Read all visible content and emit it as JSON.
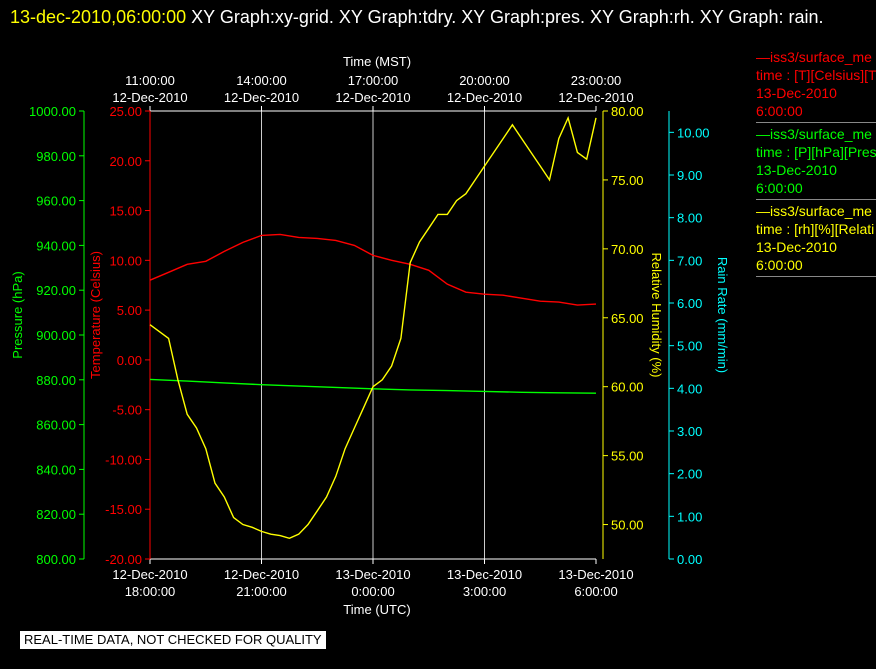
{
  "title": {
    "timestamp": "13-dec-2010,06:00:00",
    "text": "XY Graph:xy-grid.  XY Graph:tdry.  XY Graph:pres.  XY Graph:rh.  XY Graph: rain."
  },
  "legend": [
    {
      "name": "—iss3/surface_me",
      "label": "time : [T][Celsius][T",
      "date": "13-Dec-2010",
      "time": "6:00:00",
      "color": "#ff0000"
    },
    {
      "name": "—iss3/surface_me",
      "label": "time : [P][hPa][Pres",
      "date": "13-Dec-2010",
      "time": "6:00:00",
      "color": "#00ff00"
    },
    {
      "name": "—iss3/surface_me",
      "label": "time : [rh][%][Relati",
      "date": "13-Dec-2010",
      "time": "6:00:00",
      "color": "#ffff00"
    }
  ],
  "footer": "REAL-TIME DATA, NOT CHECKED FOR QUALITY",
  "chart_data": {
    "type": "line",
    "top_axis_label": "Time (MST)",
    "bottom_axis_label": "Time (UTC)",
    "xlim": [
      "12-Dec-2010 18:00:00",
      "13-Dec-2010 06:00:00"
    ],
    "x_ticks_utc": [
      {
        "date": "12-Dec-2010",
        "time": "18:00:00"
      },
      {
        "date": "12-Dec-2010",
        "time": "21:00:00"
      },
      {
        "date": "13-Dec-2010",
        "time": "0:00:00"
      },
      {
        "date": "13-Dec-2010",
        "time": "3:00:00"
      },
      {
        "date": "13-Dec-2010",
        "time": "6:00:00"
      }
    ],
    "x_ticks_mst": [
      {
        "time": "11:00:00",
        "date": "12-Dec-2010"
      },
      {
        "time": "14:00:00",
        "date": "12-Dec-2010"
      },
      {
        "time": "17:00:00",
        "date": "12-Dec-2010"
      },
      {
        "time": "20:00:00",
        "date": "12-Dec-2010"
      },
      {
        "time": "23:00:00",
        "date": "12-Dec-2010"
      }
    ],
    "grid": "vertical",
    "axes": {
      "pressure": {
        "label": "Pressure (hPa)",
        "min": 800,
        "max": 1000,
        "color": "#00ff00",
        "ticks": [
          "800.00",
          "820.00",
          "840.00",
          "860.00",
          "880.00",
          "900.00",
          "920.00",
          "940.00",
          "960.00",
          "980.00",
          "1000.00"
        ]
      },
      "temperature": {
        "label": "Temperature (Celsius)",
        "min": -20,
        "max": 25,
        "color": "#ff0000",
        "ticks": [
          "-20.00",
          "-15.00",
          "-10.00",
          "-5.00",
          "0.00",
          "5.00",
          "10.00",
          "15.00",
          "20.00",
          "25.00"
        ]
      },
      "humidity": {
        "label": "Relative Humidity (%)",
        "min": 47.5,
        "max": 80,
        "color": "#ffff00",
        "ticks": [
          "50.00",
          "55.00",
          "60.00",
          "65.00",
          "70.00",
          "75.00",
          "80.00"
        ]
      },
      "rain": {
        "label": "Rain Rate (mm/min)",
        "min": 0,
        "max": 10.5,
        "color": "#00ffff",
        "ticks": [
          "0.00",
          "1.00",
          "2.00",
          "3.00",
          "4.00",
          "5.00",
          "6.00",
          "7.00",
          "8.00",
          "9.00",
          "10.00"
        ]
      }
    },
    "series": [
      {
        "name": "time : [T][Celsius][T",
        "axis": "temperature",
        "color": "#ff0000",
        "x_hours": [
          0,
          0.5,
          1,
          1.5,
          2,
          2.5,
          3,
          3.5,
          4,
          4.5,
          5,
          5.5,
          6,
          6.5,
          7,
          7.5,
          8,
          8.5,
          9,
          9.5,
          10,
          10.5,
          11,
          11.5,
          12
        ],
        "values": [
          8.0,
          8.8,
          9.6,
          9.9,
          10.9,
          11.8,
          12.5,
          12.6,
          12.3,
          12.2,
          12.0,
          11.5,
          10.5,
          10.0,
          9.6,
          9.0,
          7.6,
          6.8,
          6.6,
          6.5,
          6.2,
          5.9,
          5.8,
          5.5,
          5.6
        ]
      },
      {
        "name": "time : [P][hPa][Pres",
        "axis": "pressure",
        "color": "#00ff00",
        "x_hours": [
          0,
          1,
          2,
          3,
          4,
          5,
          6,
          7,
          8,
          9,
          10,
          11,
          12
        ],
        "values": [
          880.2,
          879.4,
          878.6,
          877.8,
          877.2,
          876.6,
          876.0,
          875.5,
          875.2,
          874.8,
          874.4,
          874.2,
          874.0
        ]
      },
      {
        "name": "time : [rh][%][Relati",
        "axis": "humidity",
        "color": "#ffff00",
        "x_hours": [
          0,
          0.25,
          0.5,
          0.75,
          1,
          1.25,
          1.5,
          1.75,
          2,
          2.25,
          2.5,
          2.75,
          3,
          3.25,
          3.5,
          3.75,
          4,
          4.25,
          4.5,
          4.75,
          5,
          5.25,
          5.5,
          5.75,
          6,
          6.25,
          6.5,
          6.75,
          7,
          7.25,
          7.5,
          7.75,
          8,
          8.25,
          8.5,
          8.75,
          9,
          9.25,
          9.5,
          9.75,
          10,
          10.25,
          10.5,
          10.75,
          11,
          11.25,
          11.5,
          11.75,
          12
        ],
        "values": [
          64.5,
          64.0,
          63.5,
          60.5,
          58.0,
          57.0,
          55.5,
          53.0,
          52.0,
          50.5,
          50.0,
          49.8,
          49.5,
          49.3,
          49.2,
          49.0,
          49.3,
          50.0,
          51.0,
          52.0,
          53.5,
          55.5,
          57.0,
          58.5,
          60.0,
          60.5,
          61.5,
          63.5,
          69.0,
          70.5,
          71.5,
          72.5,
          72.5,
          73.5,
          74.0,
          75.0,
          76.0,
          77.0,
          78.0,
          79.0,
          78.0,
          77.0,
          76.0,
          75.0,
          78.0,
          79.5,
          77.0,
          76.5,
          79.5
        ]
      }
    ]
  }
}
